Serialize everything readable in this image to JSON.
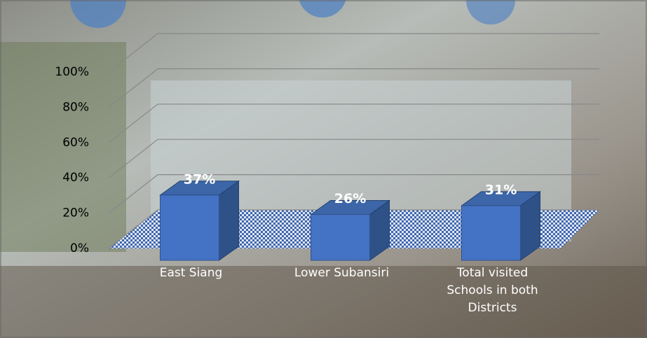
{
  "chart_data": {
    "type": "bar3d",
    "categories": [
      "East Siang",
      "Lower Subansiri",
      "Total visited Schools in both Districts"
    ],
    "values": [
      37,
      26,
      31
    ],
    "value_labels": [
      "37%",
      "26%",
      "31%"
    ],
    "color": "#4472c4",
    "ylim": [
      0,
      100
    ],
    "yticks": [
      {
        "value": 0,
        "label": "0%"
      },
      {
        "value": 20,
        "label": "20%"
      },
      {
        "value": 40,
        "label": "40%"
      },
      {
        "value": 60,
        "label": "60%"
      },
      {
        "value": 80,
        "label": "80%"
      },
      {
        "value": 100,
        "label": "100%"
      }
    ],
    "grid": true
  }
}
